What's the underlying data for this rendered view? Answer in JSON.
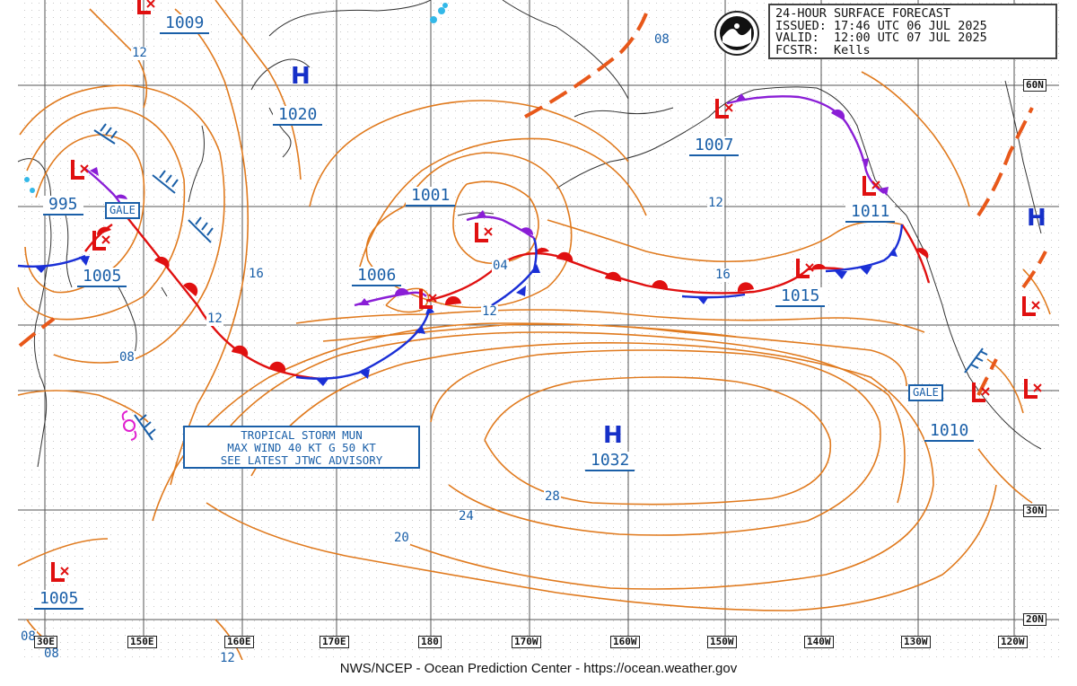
{
  "header": {
    "line1": "24-HOUR SURFACE FORECAST",
    "line2": "ISSUED: 17:46 UTC 06 JUL 2025",
    "line3": "VALID:  12:00 UTC 07 JUL 2025",
    "line4": "FCSTR:  Kells"
  },
  "footer": "NWS/NCEP - Ocean Prediction Center - https://ocean.weather.gov",
  "storm_advisory": {
    "line1": "TROPICAL STORM MUN",
    "line2": "MAX WIND 40 KT G 50 KT",
    "line3": "SEE LATEST JTWC ADVISORY"
  },
  "pressure_labels": [
    "1009",
    "1020",
    "995",
    "1005",
    "1001",
    "1006",
    "1007",
    "1011",
    "1015",
    "1010",
    "1032",
    "1005"
  ],
  "high_symbol": "H",
  "low_symbol": "L",
  "gale_label": "GALE",
  "isobar_labels": [
    "12",
    "08",
    "12",
    "16",
    "12",
    "08",
    "04",
    "12",
    "12",
    "16",
    "28",
    "24",
    "20",
    "08",
    "08",
    "12"
  ],
  "latitudes": [
    "60N",
    "30N",
    "20N"
  ],
  "longitudes": [
    "30E",
    "150E",
    "160E",
    "170E",
    "180",
    "170W",
    "160W",
    "150W",
    "140W",
    "130W",
    "120W"
  ],
  "colors": {
    "isobar": "#e07a1e",
    "warm_front": "#e01010",
    "cold_front": "#1a2fd6",
    "occluded_front": "#8a1ed6",
    "label": "#1a5fa8",
    "high": "#1630c8"
  }
}
